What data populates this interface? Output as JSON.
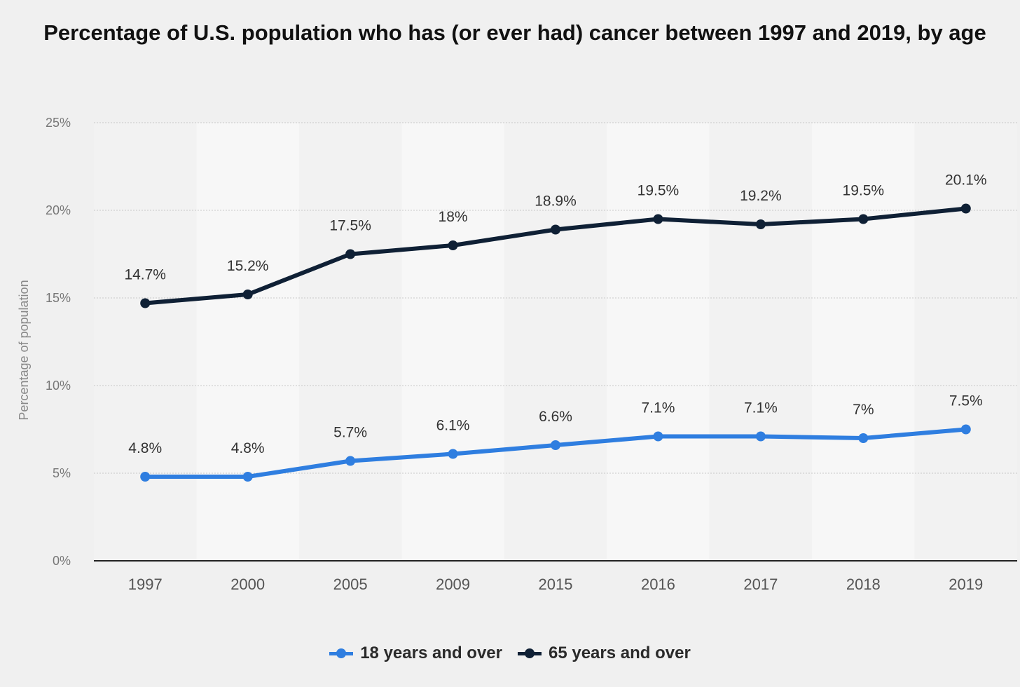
{
  "chart_data": {
    "type": "line",
    "title": "Percentage of U.S. population who has (or ever had) cancer between 1997 and 2019, by age",
    "xlabel": "",
    "ylabel": "Percentage of population",
    "categories": [
      "1997",
      "2000",
      "2005",
      "2009",
      "2015",
      "2016",
      "2017",
      "2018",
      "2019"
    ],
    "series": [
      {
        "name": "18 years and over",
        "color": "#2f7ee0",
        "values": [
          4.8,
          4.8,
          5.7,
          6.1,
          6.6,
          7.1,
          7.1,
          7.0,
          7.5
        ],
        "labels": [
          "4.8%",
          "4.8%",
          "5.7%",
          "6.1%",
          "6.6%",
          "7.1%",
          "7.1%",
          "7%",
          "7.5%"
        ]
      },
      {
        "name": "65 years and over",
        "color": "#0f2035",
        "values": [
          14.7,
          15.2,
          17.5,
          18.0,
          18.9,
          19.5,
          19.2,
          19.5,
          20.1
        ],
        "labels": [
          "14.7%",
          "15.2%",
          "17.5%",
          "18%",
          "18.9%",
          "19.5%",
          "19.2%",
          "19.5%",
          "20.1%"
        ]
      }
    ],
    "y_ticks": [
      "0%",
      "5%",
      "10%",
      "15%",
      "20%",
      "25%"
    ],
    "y_tick_values": [
      0,
      5,
      10,
      15,
      20,
      25
    ],
    "ylim": [
      0,
      25
    ],
    "grid": true,
    "legend_position": "bottom-center"
  }
}
